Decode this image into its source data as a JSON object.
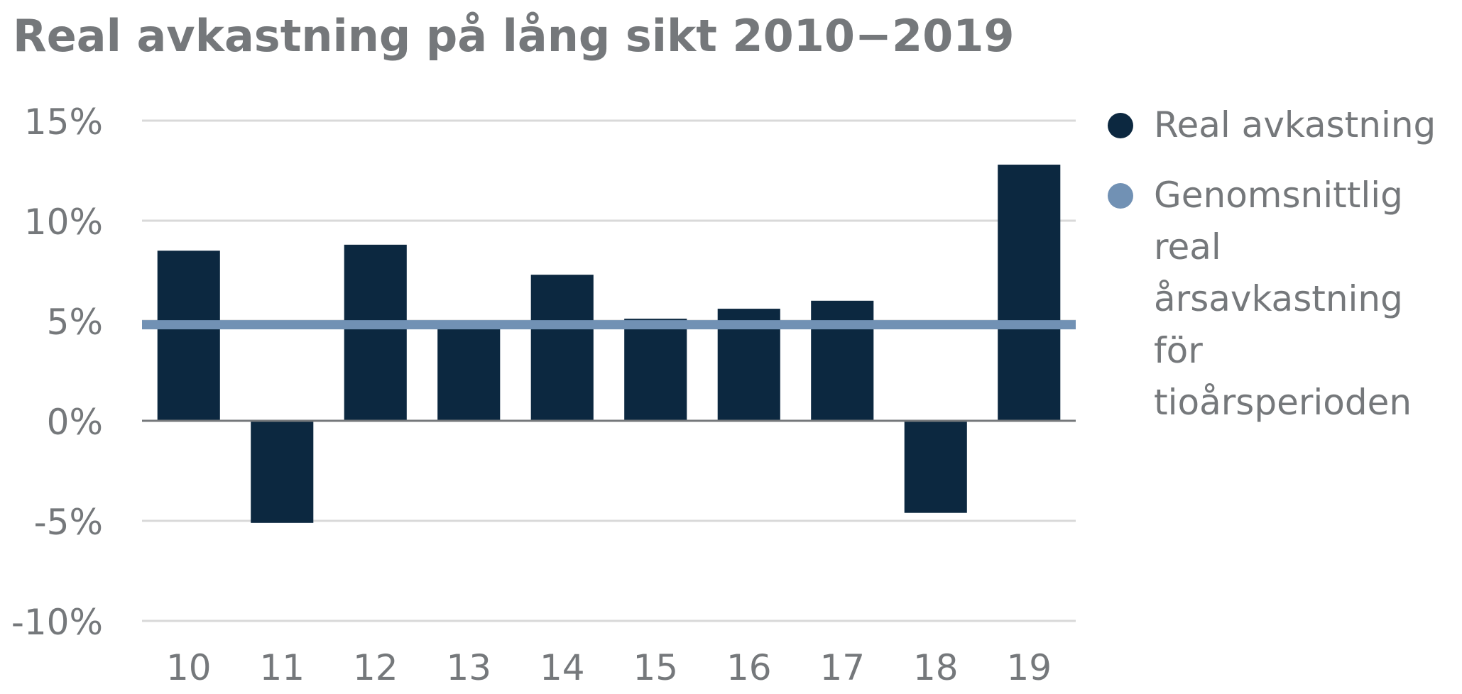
{
  "chart_data": {
    "type": "bar",
    "title": "Real avkastning på lång sikt 2010−2019",
    "categories": [
      "10",
      "11",
      "12",
      "13",
      "14",
      "15",
      "16",
      "17",
      "18",
      "19"
    ],
    "series": [
      {
        "name": "Real avkastning",
        "type": "bar",
        "color": "#0c2840",
        "values": [
          8.5,
          -5.1,
          8.8,
          4.6,
          7.3,
          5.1,
          5.6,
          6.0,
          -4.6,
          12.8
        ]
      },
      {
        "name": "Genomsnittlig real årsavkastning för tioårsperioden",
        "type": "line",
        "color": "#7191b4",
        "value": 4.8
      }
    ],
    "ylim": [
      -10,
      15
    ],
    "yticks": [
      15,
      10,
      5,
      0,
      -5,
      -10
    ],
    "ytick_labels": [
      "15%",
      "10%",
      "5%",
      "0%",
      "-5%",
      "-10%"
    ],
    "xlabel": "",
    "ylabel": "",
    "grid": true,
    "legend": "right"
  },
  "legend": {
    "items": [
      {
        "label": "Real avkastning",
        "color": "#0c2840"
      },
      {
        "label": "Genomsnittlig real årsavkastning för tioårsperioden",
        "color": "#7191b4"
      }
    ]
  },
  "colors": {
    "text": "#75787b",
    "grid": "#d9d9d9",
    "zero_axis": "#75787b",
    "bar": "#0c2840",
    "average_line": "#7191b4"
  }
}
